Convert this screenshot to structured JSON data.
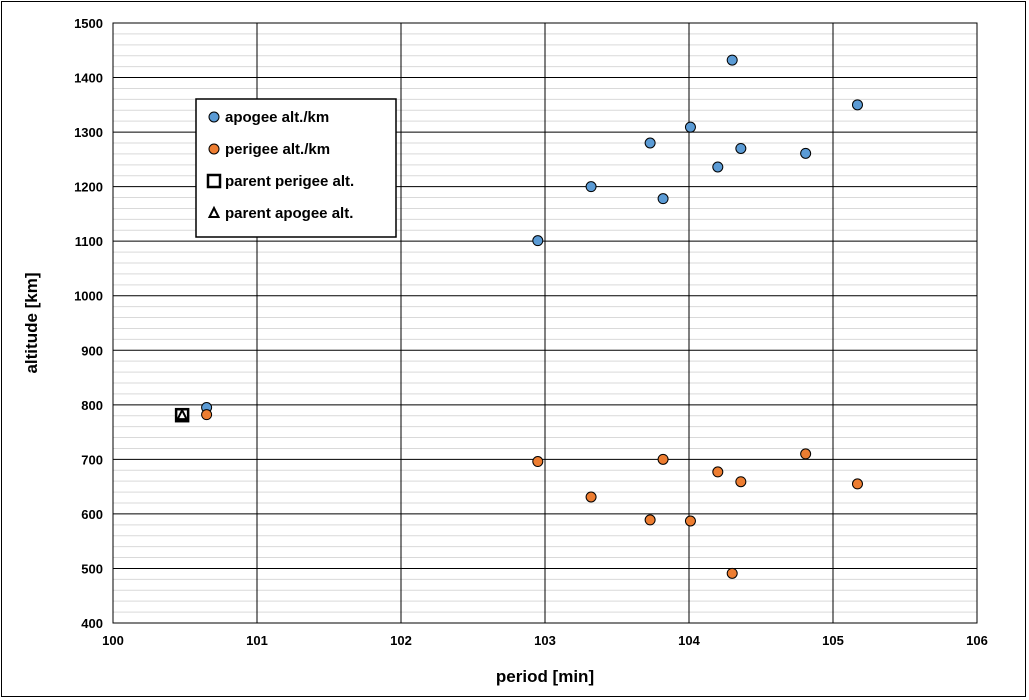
{
  "chart_data": {
    "type": "scatter",
    "title": "",
    "xlabel": "period [min]",
    "ylabel": "altitude [km]",
    "xlim": [
      100,
      106
    ],
    "ylim": [
      400,
      1500
    ],
    "x_ticks": [
      "100",
      "101",
      "102",
      "103",
      "104",
      "105",
      "106"
    ],
    "y_ticks": [
      "400",
      "500",
      "600",
      "700",
      "800",
      "900",
      "1000",
      "1100",
      "1200",
      "1300",
      "1400",
      "1500"
    ],
    "grid": {
      "major": true,
      "minor_y": true
    },
    "legend_position": "upper-left",
    "series": [
      {
        "name": "apogee alt./km",
        "marker": "circle",
        "color": "#5b9bd5",
        "points": [
          [
            100.65,
            795
          ],
          [
            102.95,
            1101
          ],
          [
            103.32,
            1200
          ],
          [
            103.73,
            1280
          ],
          [
            103.82,
            1178
          ],
          [
            104.01,
            1309
          ],
          [
            104.2,
            1236
          ],
          [
            104.3,
            1432
          ],
          [
            104.36,
            1270
          ],
          [
            104.81,
            1261
          ],
          [
            105.17,
            1350
          ]
        ]
      },
      {
        "name": "perigee alt./km",
        "marker": "circle",
        "color": "#ed7d31",
        "points": [
          [
            100.65,
            782
          ],
          [
            102.95,
            696
          ],
          [
            103.32,
            631
          ],
          [
            103.73,
            589
          ],
          [
            103.82,
            700
          ],
          [
            104.01,
            587
          ],
          [
            104.2,
            677
          ],
          [
            104.3,
            491
          ],
          [
            104.36,
            659
          ],
          [
            104.81,
            710
          ],
          [
            105.17,
            655
          ]
        ]
      },
      {
        "name": "parent perigee alt.",
        "marker": "square",
        "color": "#000000",
        "points": [
          [
            100.48,
            781
          ]
        ]
      },
      {
        "name": "parent apogee alt.",
        "marker": "triangle",
        "color": "#000000",
        "points": [
          [
            100.48,
            781
          ]
        ]
      }
    ]
  }
}
